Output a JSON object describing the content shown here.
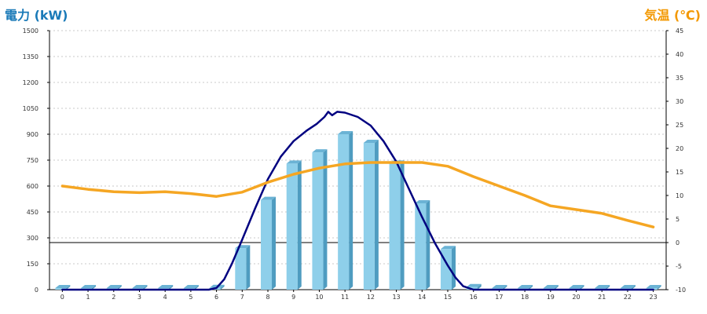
{
  "left_axis_title": "電力 (kW)",
  "right_axis_title": "気温 (℃)",
  "colors": {
    "left_title": "#1a7ab8",
    "right_title": "#f39800",
    "bar_front": "#8ecfea",
    "bar_side": "#4f9cc0",
    "bar_top": "#6bb3d5",
    "power_line": "#000080",
    "temp_line": "#f5a623",
    "grid": "#c8c8c8",
    "zero_line": "#000000"
  },
  "chart_data": {
    "type": "bar",
    "title": "",
    "categories": [
      "0",
      "1",
      "2",
      "3",
      "4",
      "5",
      "6",
      "7",
      "8",
      "9",
      "10",
      "11",
      "12",
      "13",
      "14",
      "15",
      "16",
      "17",
      "18",
      "19",
      "20",
      "21",
      "22",
      "23"
    ],
    "y_left": {
      "label": "電力 (kW)",
      "ylim": [
        0,
        1500
      ],
      "ticks": [
        "0",
        "150",
        "300",
        "450",
        "600",
        "750",
        "900",
        "1050",
        "1200",
        "1350",
        "1500"
      ]
    },
    "y_right": {
      "label": "気温 (℃)",
      "ylim": [
        -10,
        45
      ],
      "ticks": [
        "-10",
        "-5",
        "0",
        "5",
        "10",
        "15",
        "20",
        "25",
        "30",
        "35",
        "40",
        "45"
      ]
    },
    "grid": true,
    "series": [
      {
        "kind": "bar",
        "axis": "left",
        "values": [
          0,
          0,
          0,
          0,
          0,
          0,
          10,
          240,
          520,
          730,
          795,
          900,
          850,
          730,
          500,
          235,
          15,
          0,
          0,
          0,
          0,
          0,
          0,
          0
        ]
      },
      {
        "kind": "line",
        "axis": "left",
        "x": [
          0,
          1,
          2,
          3,
          4,
          5,
          5.7,
          6,
          6.3,
          6.6,
          7,
          7.5,
          8,
          8.5,
          9,
          9.5,
          9.9,
          10.2,
          10.35,
          10.5,
          10.7,
          11,
          11.5,
          12,
          12.5,
          13,
          13.5,
          14,
          14.5,
          15,
          15.3,
          15.6,
          16,
          17,
          18,
          19,
          20,
          21,
          22,
          23
        ],
        "values": [
          0,
          0,
          0,
          0,
          0,
          0,
          0,
          10,
          60,
          150,
          290,
          470,
          640,
          770,
          860,
          920,
          960,
          1000,
          1030,
          1010,
          1030,
          1025,
          1000,
          950,
          860,
          740,
          580,
          420,
          270,
          140,
          70,
          20,
          0,
          0,
          0,
          0,
          0,
          0,
          0,
          0
        ]
      },
      {
        "kind": "line",
        "axis": "right",
        "x": [
          0,
          1,
          2,
          3,
          4,
          5,
          6,
          7,
          8,
          9,
          10,
          11,
          12,
          13,
          14,
          15,
          16,
          17,
          18,
          19,
          20,
          21,
          22,
          23
        ],
        "values": [
          12,
          11.3,
          10.8,
          10.6,
          10.8,
          10.4,
          9.8,
          10.7,
          12.8,
          14.5,
          15.8,
          16.7,
          17,
          17,
          17,
          16.2,
          14,
          12,
          10,
          7.8,
          7,
          6.2,
          4.7,
          3.3
        ]
      }
    ]
  }
}
